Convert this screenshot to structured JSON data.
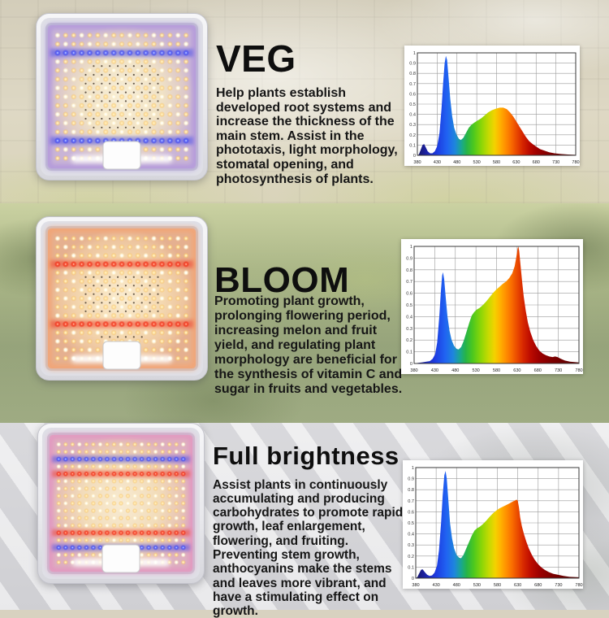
{
  "palette": {
    "stripe_blue": "#3b43ec",
    "stripe_red": "#f1301a",
    "led_warm": "#ffe3a0",
    "led_white": "#fffbe8",
    "title_color": "#0e0e0e"
  },
  "sections": [
    {
      "id": "veg",
      "title": "VEG",
      "description": "Help plants establish developed root systems and increase the thickness of the main stem. Assist in the phototaxis, light morphology, stomatal opening, and photosynthesis of plants.",
      "panel": {
        "rows": 15,
        "cols": 17,
        "stripes": [
          {
            "row": 2,
            "kind": "blue"
          },
          {
            "row": 12,
            "kind": "blue"
          }
        ],
        "glow": "#9d7fe0",
        "board": "cool",
        "dark_center": true,
        "driver_box": true
      },
      "chart_index": 0
    },
    {
      "id": "bloom",
      "title": "BLOOM",
      "description": "Promoting plant growth, prolonging flowering period, increasing melon and fruit yield, and regulating plant morphology are beneficial for the synthesis of vitamin C and sugar in fruits and vegetables.",
      "panel": {
        "rows": 15,
        "cols": 17,
        "stripes": [
          {
            "row": 3,
            "kind": "red"
          },
          {
            "row": 10,
            "kind": "red"
          }
        ],
        "glow": "#ff9a5c",
        "board": "warm",
        "dark_center": true,
        "driver_box": true
      },
      "chart_index": 1
    },
    {
      "id": "full-brightness",
      "title": "Full brightness",
      "description": "Assist plants in continuously accumulating and producing carbohydrates to promote rapid growth, leaf enlargement, flowering, and fruiting. Preventing stem growth, anthocyanins make the stems and leaves more vibrant, and have a stimulating effect on growth.",
      "panel": {
        "rows": 17,
        "cols": 19,
        "stripes": [
          {
            "row": 2,
            "kind": "blue"
          },
          {
            "row": 4,
            "kind": "red"
          },
          {
            "row": 12,
            "kind": "red"
          },
          {
            "row": 14,
            "kind": "blue"
          }
        ],
        "glow": "#e87fc0",
        "board": "full",
        "dark_center": false,
        "driver_box": true
      },
      "chart_index": 2
    }
  ],
  "spectrum_gradient": [
    {
      "nm": 380,
      "c": "#161665"
    },
    {
      "nm": 400,
      "c": "#1b1f9e"
    },
    {
      "nm": 430,
      "c": "#1d3be0"
    },
    {
      "nm": 455,
      "c": "#2063f2"
    },
    {
      "nm": 475,
      "c": "#1e86dc"
    },
    {
      "nm": 492,
      "c": "#1aa88c"
    },
    {
      "nm": 505,
      "c": "#27b447"
    },
    {
      "nm": 522,
      "c": "#4cc81e"
    },
    {
      "nm": 542,
      "c": "#8cd607"
    },
    {
      "nm": 560,
      "c": "#c6da02"
    },
    {
      "nm": 575,
      "c": "#f3d200"
    },
    {
      "nm": 588,
      "c": "#ffb300"
    },
    {
      "nm": 602,
      "c": "#ff9000"
    },
    {
      "nm": 616,
      "c": "#f96e00"
    },
    {
      "nm": 630,
      "c": "#ea4a00"
    },
    {
      "nm": 645,
      "c": "#d62600"
    },
    {
      "nm": 662,
      "c": "#bc0b00"
    },
    {
      "nm": 682,
      "c": "#9e0000"
    },
    {
      "nm": 710,
      "c": "#800000"
    },
    {
      "nm": 745,
      "c": "#690000"
    },
    {
      "nm": 780,
      "c": "#5a0000"
    }
  ],
  "chart_data": [
    {
      "type": "area",
      "series_name": "VEG spectrum",
      "xlim": [
        380,
        780
      ],
      "ylim": [
        0,
        1
      ],
      "x_ticks": [
        380,
        430,
        480,
        530,
        580,
        630,
        680,
        730,
        780
      ],
      "y_ticks": [
        "0",
        "0.1",
        "0.2",
        "0.3",
        "0.4",
        "0.5",
        "0.6",
        "0.7",
        "0.8",
        "0.9",
        "1"
      ],
      "grid": true,
      "legend": false,
      "points": [
        [
          380,
          0
        ],
        [
          384,
          0.01
        ],
        [
          388,
          0.05
        ],
        [
          393,
          0.1
        ],
        [
          397,
          0.11
        ],
        [
          401,
          0.08
        ],
        [
          406,
          0.04
        ],
        [
          412,
          0.02
        ],
        [
          418,
          0.02
        ],
        [
          424,
          0.04
        ],
        [
          430,
          0.09
        ],
        [
          436,
          0.22
        ],
        [
          441,
          0.45
        ],
        [
          445,
          0.7
        ],
        [
          449,
          0.9
        ],
        [
          452,
          0.97
        ],
        [
          455,
          0.93
        ],
        [
          459,
          0.75
        ],
        [
          463,
          0.55
        ],
        [
          468,
          0.38
        ],
        [
          473,
          0.27
        ],
        [
          479,
          0.2
        ],
        [
          485,
          0.16
        ],
        [
          490,
          0.15
        ],
        [
          496,
          0.17
        ],
        [
          503,
          0.22
        ],
        [
          510,
          0.27
        ],
        [
          517,
          0.3
        ],
        [
          524,
          0.32
        ],
        [
          532,
          0.34
        ],
        [
          541,
          0.36
        ],
        [
          550,
          0.39
        ],
        [
          559,
          0.42
        ],
        [
          568,
          0.44
        ],
        [
          578,
          0.455
        ],
        [
          588,
          0.465
        ],
        [
          597,
          0.465
        ],
        [
          606,
          0.45
        ],
        [
          614,
          0.42
        ],
        [
          622,
          0.38
        ],
        [
          630,
          0.33
        ],
        [
          638,
          0.28
        ],
        [
          646,
          0.23
        ],
        [
          654,
          0.18
        ],
        [
          662,
          0.14
        ],
        [
          671,
          0.11
        ],
        [
          680,
          0.085
        ],
        [
          690,
          0.06
        ],
        [
          701,
          0.045
        ],
        [
          713,
          0.03
        ],
        [
          726,
          0.02
        ],
        [
          742,
          0.013
        ],
        [
          760,
          0.008
        ],
        [
          780,
          0.005
        ]
      ]
    },
    {
      "type": "area",
      "series_name": "BLOOM spectrum",
      "xlim": [
        380,
        780
      ],
      "ylim": [
        0,
        1
      ],
      "x_ticks": [
        380,
        430,
        480,
        530,
        580,
        630,
        680,
        730,
        780
      ],
      "y_ticks": [
        "0",
        "0.1",
        "0.2",
        "0.3",
        "0.4",
        "0.5",
        "0.6",
        "0.7",
        "0.8",
        "0.9",
        "1"
      ],
      "grid": true,
      "legend": false,
      "points": [
        [
          380,
          0
        ],
        [
          390,
          0.005
        ],
        [
          400,
          0.01
        ],
        [
          410,
          0.015
        ],
        [
          418,
          0.02
        ],
        [
          425,
          0.04
        ],
        [
          431,
          0.08
        ],
        [
          436,
          0.18
        ],
        [
          441,
          0.4
        ],
        [
          445,
          0.62
        ],
        [
          448,
          0.75
        ],
        [
          450,
          0.78
        ],
        [
          453,
          0.72
        ],
        [
          457,
          0.55
        ],
        [
          461,
          0.4
        ],
        [
          466,
          0.28
        ],
        [
          471,
          0.2
        ],
        [
          477,
          0.15
        ],
        [
          483,
          0.125
        ],
        [
          488,
          0.12
        ],
        [
          494,
          0.14
        ],
        [
          500,
          0.19
        ],
        [
          507,
          0.27
        ],
        [
          514,
          0.35
        ],
        [
          520,
          0.41
        ],
        [
          526,
          0.44
        ],
        [
          532,
          0.46
        ],
        [
          539,
          0.475
        ],
        [
          547,
          0.5
        ],
        [
          555,
          0.53
        ],
        [
          563,
          0.565
        ],
        [
          571,
          0.6
        ],
        [
          579,
          0.63
        ],
        [
          587,
          0.655
        ],
        [
          595,
          0.68
        ],
        [
          603,
          0.7
        ],
        [
          611,
          0.73
        ],
        [
          618,
          0.77
        ],
        [
          624,
          0.83
        ],
        [
          628,
          0.91
        ],
        [
          631,
          0.98
        ],
        [
          633,
          1.0
        ],
        [
          635,
          0.96
        ],
        [
          638,
          0.85
        ],
        [
          642,
          0.7
        ],
        [
          646,
          0.57
        ],
        [
          651,
          0.45
        ],
        [
          656,
          0.35
        ],
        [
          662,
          0.27
        ],
        [
          669,
          0.2
        ],
        [
          676,
          0.15
        ],
        [
          684,
          0.11
        ],
        [
          692,
          0.085
        ],
        [
          700,
          0.07
        ],
        [
          708,
          0.06
        ],
        [
          716,
          0.055
        ],
        [
          722,
          0.06
        ],
        [
          728,
          0.055
        ],
        [
          736,
          0.04
        ],
        [
          746,
          0.025
        ],
        [
          758,
          0.015
        ],
        [
          780,
          0.008
        ]
      ]
    },
    {
      "type": "area",
      "series_name": "Full brightness spectrum",
      "xlim": [
        380,
        780
      ],
      "ylim": [
        0,
        1
      ],
      "x_ticks": [
        380,
        430,
        480,
        530,
        580,
        630,
        680,
        730,
        780
      ],
      "y_ticks": [
        "0",
        "0.1",
        "0.2",
        "0.3",
        "0.4",
        "0.5",
        "0.6",
        "0.7",
        "0.8",
        "0.9",
        "1"
      ],
      "grid": true,
      "legend": false,
      "points": [
        [
          380,
          0
        ],
        [
          384,
          0.01
        ],
        [
          388,
          0.04
        ],
        [
          393,
          0.075
        ],
        [
          397,
          0.08
        ],
        [
          402,
          0.055
        ],
        [
          408,
          0.03
        ],
        [
          414,
          0.02
        ],
        [
          420,
          0.025
        ],
        [
          426,
          0.05
        ],
        [
          432,
          0.11
        ],
        [
          437,
          0.25
        ],
        [
          442,
          0.5
        ],
        [
          446,
          0.75
        ],
        [
          450,
          0.93
        ],
        [
          453,
          0.97
        ],
        [
          456,
          0.9
        ],
        [
          460,
          0.7
        ],
        [
          464,
          0.5
        ],
        [
          469,
          0.36
        ],
        [
          474,
          0.27
        ],
        [
          480,
          0.21
        ],
        [
          486,
          0.185
        ],
        [
          491,
          0.18
        ],
        [
          497,
          0.21
        ],
        [
          504,
          0.27
        ],
        [
          511,
          0.33
        ],
        [
          518,
          0.39
        ],
        [
          524,
          0.43
        ],
        [
          530,
          0.45
        ],
        [
          537,
          0.465
        ],
        [
          545,
          0.49
        ],
        [
          553,
          0.52
        ],
        [
          561,
          0.555
        ],
        [
          569,
          0.585
        ],
        [
          577,
          0.61
        ],
        [
          585,
          0.63
        ],
        [
          593,
          0.645
        ],
        [
          601,
          0.66
        ],
        [
          609,
          0.675
        ],
        [
          616,
          0.69
        ],
        [
          622,
          0.7
        ],
        [
          627,
          0.71
        ],
        [
          630,
          0.7
        ],
        [
          633,
          0.64
        ],
        [
          636,
          0.55
        ],
        [
          640,
          0.47
        ],
        [
          645,
          0.4
        ],
        [
          651,
          0.33
        ],
        [
          657,
          0.27
        ],
        [
          664,
          0.215
        ],
        [
          671,
          0.17
        ],
        [
          679,
          0.13
        ],
        [
          687,
          0.1
        ],
        [
          696,
          0.075
        ],
        [
          706,
          0.055
        ],
        [
          717,
          0.04
        ],
        [
          729,
          0.03
        ],
        [
          742,
          0.02
        ],
        [
          757,
          0.012
        ],
        [
          780,
          0.008
        ]
      ]
    }
  ]
}
